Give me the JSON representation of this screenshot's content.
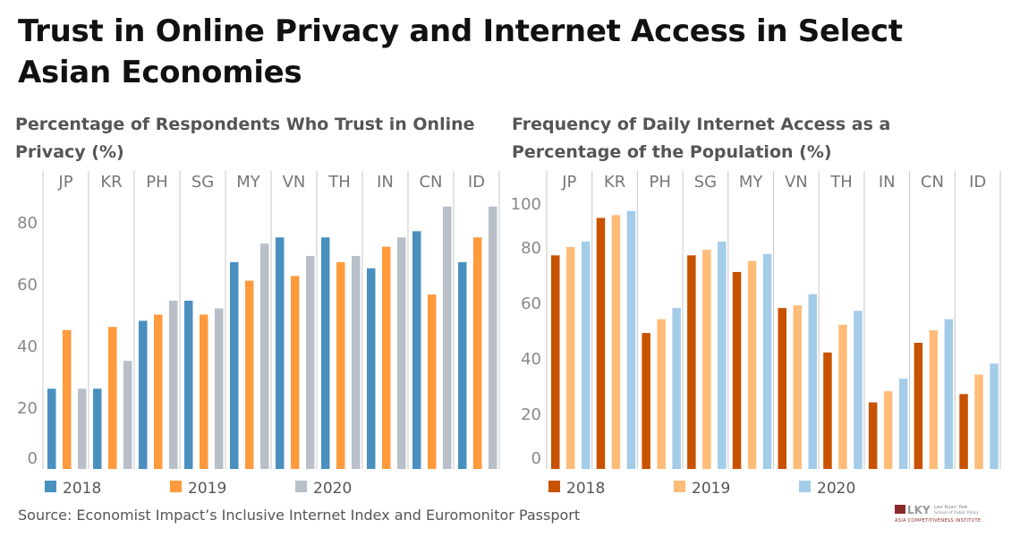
{
  "title": "Trust in Online Privacy and Internet Access in Select Asian Economies",
  "source": "Source: Economist Impact’s Inclusive Internet Index and Euromonitor Passport",
  "logo": {
    "mark": "LKY",
    "line1": "Lee Kuan Yew",
    "line2": "School of Public Policy",
    "line3": "Asia Competitiveness Institute"
  },
  "chart_data": [
    {
      "type": "bar",
      "title": "Percentage of Respondents Who Trust in Online Privacy (%)",
      "categories": [
        "JP",
        "KR",
        "PH",
        "SG",
        "MY",
        "VN",
        "TH",
        "IN",
        "CN",
        "ID"
      ],
      "yticks": [
        0,
        20,
        40,
        60,
        80
      ],
      "ylim": [
        0,
        90
      ],
      "grid": false,
      "legend": "bottom",
      "series": [
        {
          "name": "2018",
          "color": "#4a90be",
          "values": [
            26,
            26,
            48,
            54.5,
            67,
            75,
            75,
            65,
            77,
            67
          ]
        },
        {
          "name": "2019",
          "color": "#ff9a3d",
          "values": [
            45,
            46,
            50,
            50,
            61,
            62.5,
            67,
            72,
            56.5,
            75
          ]
        },
        {
          "name": "2020",
          "color": "#b8bfc9",
          "values": [
            26,
            35,
            54.5,
            52,
            73,
            69,
            69,
            75,
            85,
            85
          ]
        }
      ]
    },
    {
      "type": "bar",
      "title": "Frequency of Daily Internet Access as a Percentage of the Population (%)",
      "categories": [
        "JP",
        "KR",
        "PH",
        "SG",
        "MY",
        "VN",
        "TH",
        "IN",
        "CN",
        "ID"
      ],
      "yticks": [
        0,
        20,
        40,
        60,
        80,
        100
      ],
      "ylim": [
        0,
        100
      ],
      "grid": false,
      "legend": "bottom",
      "series": [
        {
          "name": "2018",
          "color": "#c85200",
          "values": [
            77,
            90.5,
            49,
            77,
            71,
            58,
            42,
            24,
            45.5,
            27
          ]
        },
        {
          "name": "2019",
          "color": "#ffbc79",
          "values": [
            80,
            91.5,
            54,
            79,
            75,
            59,
            52,
            28,
            50,
            34
          ]
        },
        {
          "name": "2020",
          "color": "#a3cce9",
          "values": [
            82,
            93,
            58,
            82,
            77.5,
            63,
            57,
            32.5,
            54,
            38
          ]
        }
      ]
    }
  ]
}
